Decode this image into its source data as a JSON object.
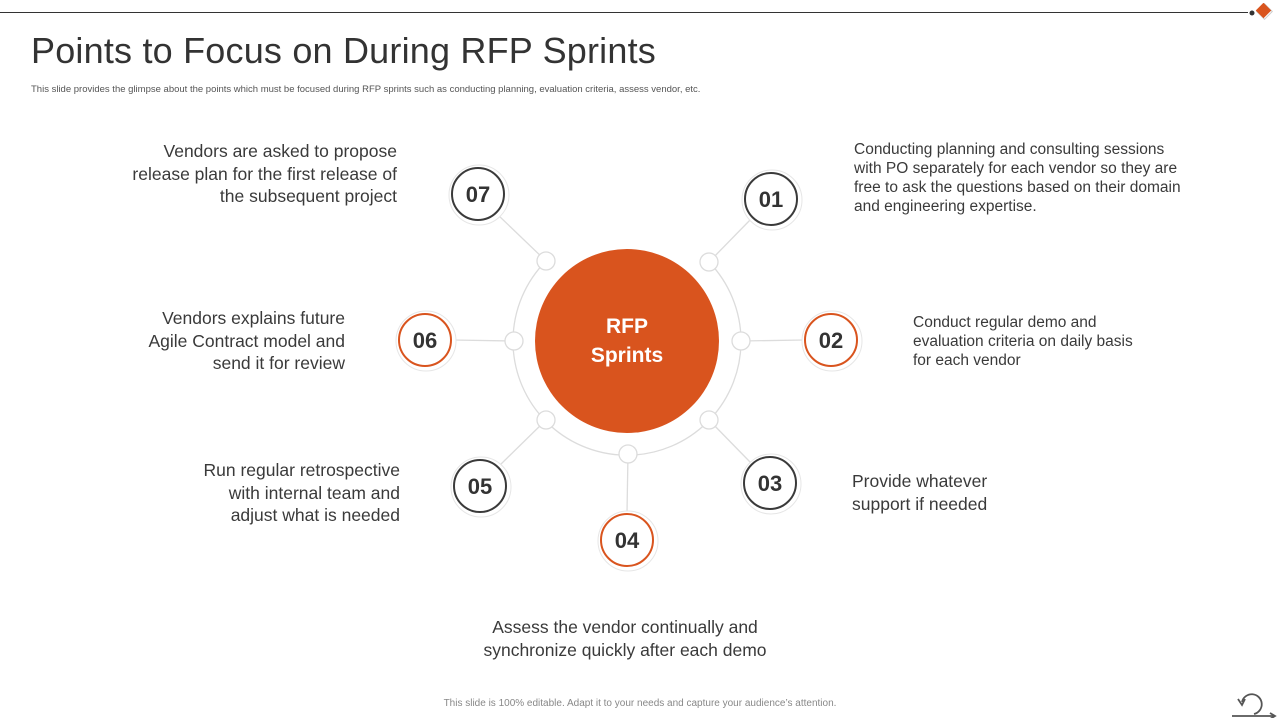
{
  "slide": {
    "title": "Points to Focus on During RFP Sprints",
    "subtitle": "This slide provides the glimpse about the points which must be focused during RFP sprints such as conducting planning, evaluation criteria, assess vendor, etc.",
    "footer": "This slide is 100% editable. Adapt it to your needs and capture your audience’s attention.",
    "accent_color": "#d9541e",
    "dark_color": "#3a3a3a"
  },
  "hub": {
    "line1": "RFP",
    "line2": "Sprints"
  },
  "points": [
    {
      "number": "01",
      "text": "Conducting planning and consulting sessions with PO separately for each vendor so they are free to ask the questions based on their domain and engineering expertise."
    },
    {
      "number": "02",
      "text": "Conduct regular demo and evaluation criteria on daily basis for each vendor"
    },
    {
      "number": "03",
      "text": "Provide whatever support if needed"
    },
    {
      "number": "04",
      "text": "Assess the vendor continually and synchronize quickly after each demo"
    },
    {
      "number": "05",
      "text": "Run regular retrospective with internal team and adjust what is needed"
    },
    {
      "number": "06",
      "text": "Vendors explains future Agile Contract model and send it for review"
    },
    {
      "number": "07",
      "text": "Vendors are asked to propose release plan for the first release of the subsequent project"
    }
  ],
  "icons": {
    "corner": "orange-diamond-icon",
    "nav": "loop-arrow-icon"
  }
}
